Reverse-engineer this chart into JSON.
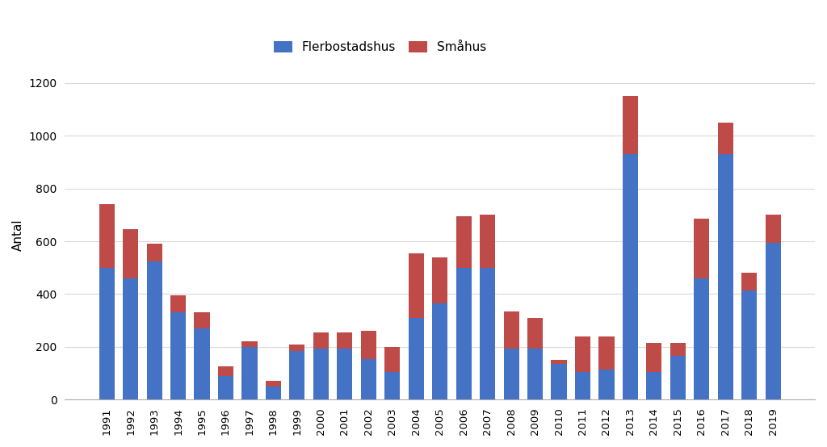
{
  "years": [
    1991,
    1992,
    1993,
    1994,
    1995,
    1996,
    1997,
    1998,
    1999,
    2000,
    2001,
    2002,
    2003,
    2004,
    2005,
    2006,
    2007,
    2008,
    2009,
    2010,
    2011,
    2012,
    2013,
    2014,
    2015,
    2016,
    2017,
    2018,
    2019
  ],
  "flerbostadshus": [
    500,
    460,
    525,
    330,
    270,
    90,
    200,
    50,
    185,
    195,
    195,
    155,
    105,
    310,
    365,
    500,
    500,
    195,
    195,
    135,
    105,
    115,
    930,
    105,
    165,
    460,
    930,
    415,
    595
  ],
  "smahus": [
    240,
    185,
    65,
    65,
    60,
    35,
    20,
    20,
    25,
    60,
    60,
    105,
    95,
    245,
    175,
    195,
    200,
    140,
    115,
    15,
    135,
    125,
    220,
    110,
    50,
    225,
    120,
    65,
    105
  ],
  "flerbostadshus_color": "#4472C4",
  "smahus_color": "#BE4B48",
  "background_color": "#FFFFFF",
  "ylabel": "Antal",
  "ylim": [
    0,
    1250
  ],
  "yticks": [
    0,
    200,
    400,
    600,
    800,
    1000,
    1200
  ],
  "legend_labels": [
    "Flerbostadshus",
    "Småhus"
  ],
  "grid_color": "#D9D9D9",
  "bar_width": 0.65
}
